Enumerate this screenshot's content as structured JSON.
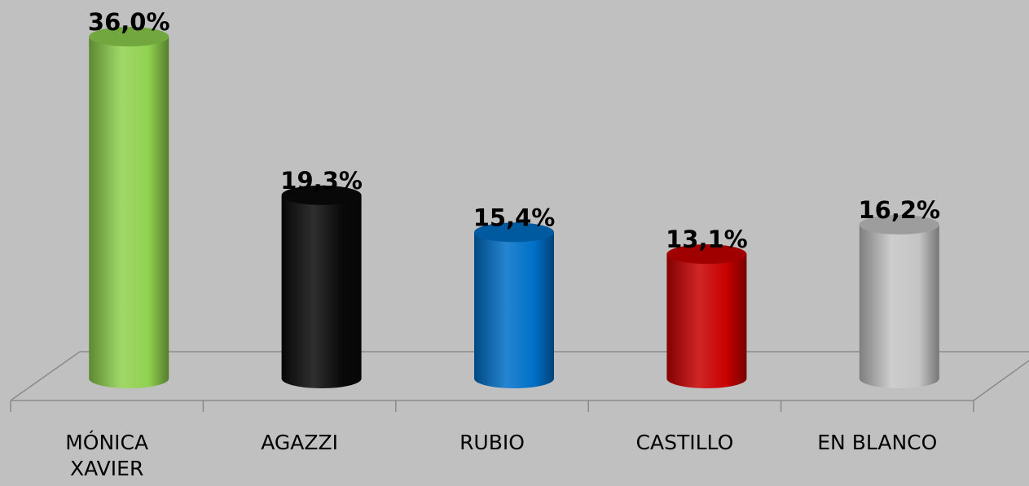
{
  "chart_data": {
    "type": "bar3d",
    "categories": [
      "MÓNICA XAVIER",
      "AGAZZI",
      "RUBIO",
      "CASTILLO",
      "EN BLANCO"
    ],
    "values": [
      36.0,
      19.3,
      15.4,
      13.1,
      16.2
    ],
    "value_labels": [
      "36,0%",
      "19,3%",
      "15,4%",
      "13,1%",
      "16,2%"
    ],
    "colors": [
      "#8fd14f",
      "#0a0a0a",
      "#0070c8",
      "#c80000",
      "#c4c4c4"
    ]
  }
}
